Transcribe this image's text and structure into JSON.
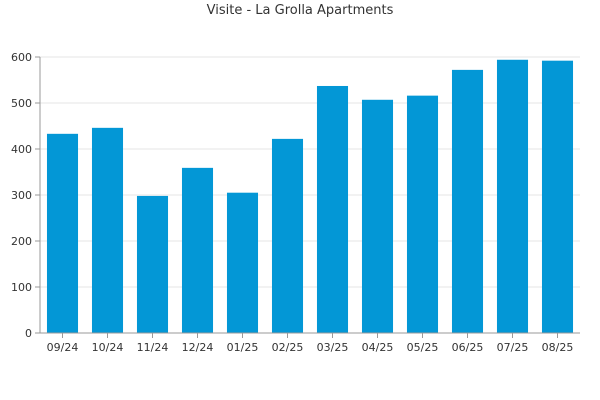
{
  "chart_data": {
    "type": "bar",
    "title": "Visite - La Grolla Apartments",
    "xlabel": "",
    "ylabel": "",
    "categories": [
      "09/24",
      "10/24",
      "11/24",
      "12/24",
      "01/25",
      "02/25",
      "03/25",
      "04/25",
      "05/25",
      "06/25",
      "07/25",
      "08/25"
    ],
    "values": [
      433,
      446,
      298,
      359,
      305,
      422,
      537,
      507,
      516,
      572,
      594,
      592
    ],
    "ylim": [
      0,
      600
    ],
    "yticks": [
      0,
      100,
      200,
      300,
      400,
      500,
      600
    ],
    "grid": true,
    "legend": "none",
    "bar_color": "#0397d6"
  }
}
